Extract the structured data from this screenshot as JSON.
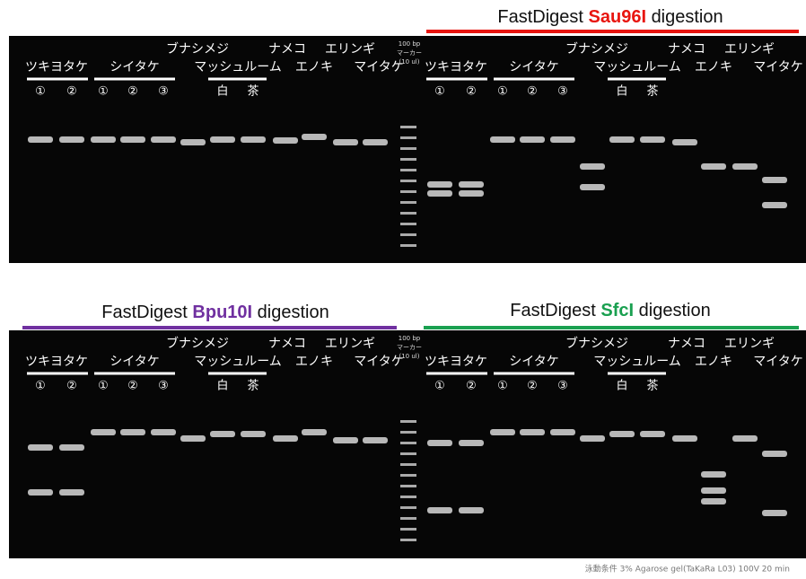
{
  "titles": [
    {
      "prefix": "FastDigest",
      "enzyme": "Sau96I",
      "suffix": "digestion"
    },
    {
      "prefix": "FastDigest",
      "enzyme": "Bpu10I",
      "suffix": "digestion"
    },
    {
      "prefix": "FastDigest",
      "enzyme": "SfcI",
      "suffix": "digestion"
    }
  ],
  "samples": [
    "ツキヨタケ",
    "シイタケ",
    "ブナシメジ",
    "マッシュルーム",
    "ナメコ",
    "エノキ",
    "エリンギ",
    "マイタケ"
  ],
  "tsukiyotake_lanes": [
    "①",
    "②"
  ],
  "shiitake_lanes": [
    "①",
    "②",
    "③"
  ],
  "mushroom_lanes": [
    "白",
    "茶"
  ],
  "marker": [
    "100 bp",
    "マーカー",
    "(10 ul)"
  ],
  "footer": "泳動条件 3% Agarose gel(TaKaRa L03) 100V 20 min"
}
